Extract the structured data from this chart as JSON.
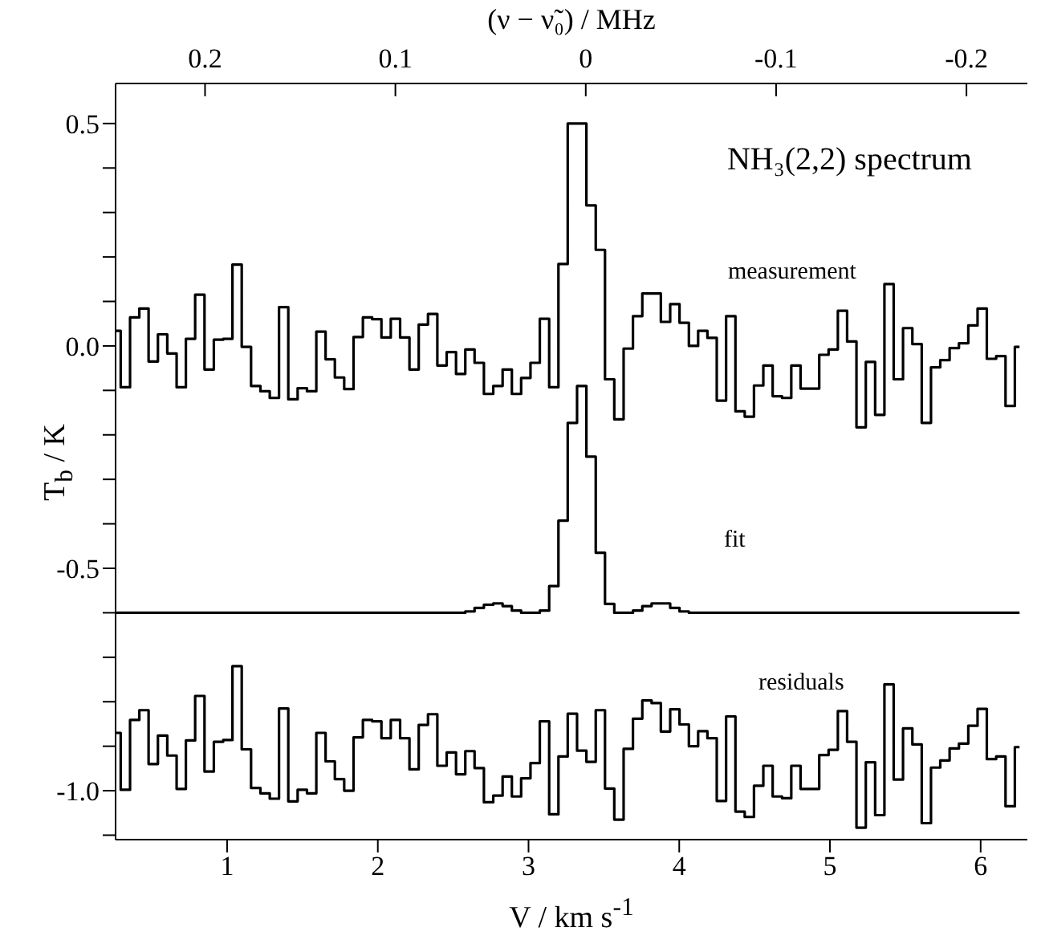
{
  "chart_data": {
    "type": "step",
    "title": "NH₃(2,2) spectrum",
    "xlabel": "V / km s$^{-1}$",
    "ylabel": "T$_{b}$ / K",
    "x2label": "(ν − ν̃₀) / MHz",
    "xlim": [
      0.26,
      6.31
    ],
    "xticks": [
      1,
      2,
      3,
      4,
      5,
      6
    ],
    "ylim": [
      -1.11,
      0.59
    ],
    "yticks": [
      {
        "value": 0.5,
        "label": "0.5"
      },
      {
        "value": 0,
        "label": "0.0"
      },
      {
        "value": -0.5,
        "label": "-0.5"
      },
      {
        "value": -1,
        "label": "-1.0"
      },
      {
        "value": 0.4,
        "label": null
      },
      {
        "value": 0.3,
        "label": null
      },
      {
        "value": 0.2,
        "label": null
      },
      {
        "value": 0.1,
        "label": null
      },
      {
        "value": -0.1,
        "label": null
      },
      {
        "value": -0.2,
        "label": null
      },
      {
        "value": -0.3,
        "label": null
      },
      {
        "value": -0.4,
        "label": null
      },
      {
        "value": -0.6,
        "label": null
      },
      {
        "value": -0.7,
        "label": null
      },
      {
        "value": -0.8,
        "label": null
      },
      {
        "value": -0.9,
        "label": null
      },
      {
        "value": -1.1,
        "label": null
      }
    ],
    "x2lim": [
      0.247,
      -0.232
    ],
    "x2ticks": [
      0.2,
      0.1,
      0,
      -0.1,
      -0.2
    ],
    "x": [
      0.263,
      0.325,
      0.387,
      0.448,
      0.51,
      0.572,
      0.634,
      0.696,
      0.757,
      0.819,
      0.881,
      0.943,
      1.005,
      1.066,
      1.128,
      1.19,
      1.252,
      1.314,
      1.375,
      1.437,
      1.499,
      1.561,
      1.623,
      1.684,
      1.746,
      1.808,
      1.87,
      1.932,
      1.993,
      2.055,
      2.117,
      2.179,
      2.241,
      2.302,
      2.364,
      2.426,
      2.488,
      2.55,
      2.611,
      2.673,
      2.735,
      2.797,
      2.859,
      2.92,
      2.982,
      3.044,
      3.106,
      3.168,
      3.229,
      3.291,
      3.353,
      3.415,
      3.477,
      3.538,
      3.6,
      3.662,
      3.724,
      3.786,
      3.847,
      3.909,
      3.971,
      4.033,
      4.095,
      4.156,
      4.218,
      4.28,
      4.342,
      4.404,
      4.465,
      4.527,
      4.589,
      4.651,
      4.713,
      4.774,
      4.836,
      4.898,
      4.96,
      5.022,
      5.083,
      5.145,
      5.207,
      5.269,
      5.331,
      5.392,
      5.454,
      5.516,
      5.578,
      5.64,
      5.701,
      5.763,
      5.825,
      5.887,
      5.949,
      6.01,
      6.072,
      6.134,
      6.196,
      6.258
    ],
    "series": [
      {
        "name": "measurement",
        "color": "#000000",
        "values": [
          0.034,
          -0.093,
          0.064,
          0.084,
          -0.035,
          0.026,
          -0.017,
          -0.093,
          0.016,
          0.115,
          -0.053,
          0.014,
          0.016,
          0.183,
          -0.002,
          -0.09,
          -0.102,
          -0.117,
          0.087,
          -0.12,
          -0.095,
          -0.102,
          0.032,
          -0.03,
          -0.071,
          -0.097,
          0.02,
          0.064,
          0.06,
          0.019,
          0.061,
          0.019,
          -0.053,
          0.048,
          0.072,
          -0.044,
          -0.014,
          -0.063,
          -0.008,
          -0.038,
          -0.108,
          -0.09,
          -0.053,
          -0.108,
          -0.072,
          -0.038,
          0.061,
          -0.093,
          0.184,
          0.5,
          0.5,
          0.316,
          0.216,
          -0.075,
          -0.165,
          -0.006,
          0.067,
          0.118,
          0.118,
          0.054,
          0.094,
          0.052,
          0,
          0.034,
          0.018,
          -0.123,
          0.067,
          -0.147,
          -0.159,
          -0.089,
          -0.044,
          -0.113,
          -0.117,
          -0.044,
          -0.096,
          -0.096,
          -0.02,
          -0.008,
          0.079,
          0.01,
          -0.183,
          -0.036,
          -0.155,
          0.139,
          -0.075,
          0.04,
          0.004,
          -0.173,
          -0.048,
          -0.032,
          -0.005,
          0.006,
          0.046,
          0.084,
          -0.029,
          -0.023,
          -0.135,
          -0.002
        ]
      },
      {
        "name": "fit",
        "color": "#000000",
        "values": [
          -0.6,
          -0.6,
          -0.6,
          -0.6,
          -0.6,
          -0.6,
          -0.6,
          -0.6,
          -0.6,
          -0.6,
          -0.6,
          -0.6,
          -0.6,
          -0.6,
          -0.6,
          -0.6,
          -0.6,
          -0.6,
          -0.6,
          -0.6,
          -0.6,
          -0.6,
          -0.6,
          -0.6,
          -0.6,
          -0.6,
          -0.6,
          -0.6,
          -0.6,
          -0.6,
          -0.6,
          -0.6,
          -0.6,
          -0.6,
          -0.6,
          -0.6,
          -0.6,
          -0.6,
          -0.597,
          -0.589,
          -0.582,
          -0.579,
          -0.585,
          -0.595,
          -0.6,
          -0.6,
          -0.595,
          -0.54,
          -0.393,
          -0.173,
          -0.09,
          -0.249,
          -0.465,
          -0.58,
          -0.6,
          -0.6,
          -0.595,
          -0.585,
          -0.579,
          -0.579,
          -0.589,
          -0.597,
          -0.6,
          -0.6,
          -0.6,
          -0.6,
          -0.6,
          -0.6,
          -0.6,
          -0.6,
          -0.6,
          -0.6,
          -0.6,
          -0.6,
          -0.6,
          -0.6,
          -0.6,
          -0.6,
          -0.6,
          -0.6,
          -0.6,
          -0.6,
          -0.6,
          -0.6,
          -0.6,
          -0.6,
          -0.6,
          -0.6,
          -0.6,
          -0.6,
          -0.6,
          -0.6,
          -0.6,
          -0.6,
          -0.6,
          -0.6,
          -0.6,
          -0.6
        ]
      },
      {
        "name": "residuals",
        "color": "#000000",
        "values": [
          -0.87,
          -0.998,
          -0.841,
          -0.819,
          -0.94,
          -0.876,
          -0.921,
          -0.996,
          -0.887,
          -0.787,
          -0.957,
          -0.89,
          -0.886,
          -0.72,
          -0.907,
          -0.994,
          -1.006,
          -1.018,
          -0.815,
          -1.024,
          -0.998,
          -1.006,
          -0.87,
          -0.934,
          -0.974,
          -1.0,
          -0.88,
          -0.841,
          -0.844,
          -0.882,
          -0.841,
          -0.882,
          -0.952,
          -0.852,
          -0.828,
          -0.944,
          -0.914,
          -0.963,
          -0.911,
          -0.949,
          -1.026,
          -1.011,
          -0.968,
          -1.013,
          -0.972,
          -0.938,
          -0.844,
          -1.053,
          -0.923,
          -0.827,
          -0.91,
          -0.935,
          -0.819,
          -0.995,
          -1.065,
          -0.906,
          -0.838,
          -0.797,
          -0.803,
          -0.867,
          -0.817,
          -0.851,
          -0.9,
          -0.866,
          -0.882,
          -1.023,
          -0.833,
          -1.047,
          -1.059,
          -0.989,
          -0.944,
          -1.013,
          -1.017,
          -0.944,
          -0.996,
          -0.996,
          -0.92,
          -0.908,
          -0.821,
          -0.89,
          -1.083,
          -0.936,
          -1.055,
          -0.761,
          -0.975,
          -0.86,
          -0.896,
          -1.073,
          -0.948,
          -0.932,
          -0.905,
          -0.894,
          -0.854,
          -0.816,
          -0.929,
          -0.923,
          -1.035,
          -0.902
        ]
      }
    ]
  }
}
